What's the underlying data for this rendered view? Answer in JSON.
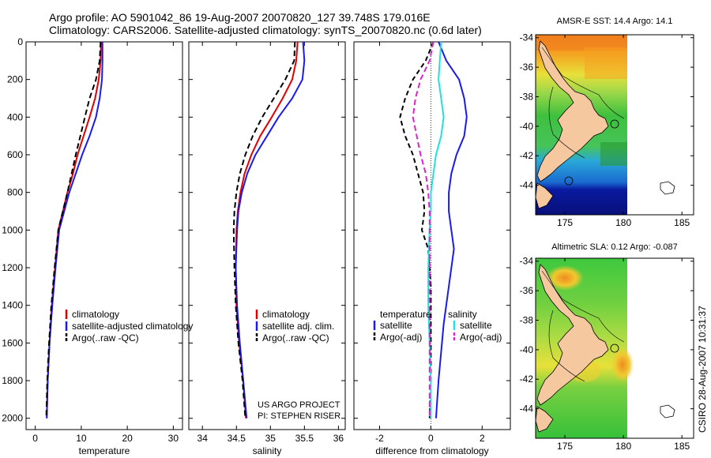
{
  "figure": {
    "title_line1": "Argo profile: AO 5901042_86 19-Aug-2007 20070820_127 39.748S 179.016E",
    "title_line2": "Climatology: CARS2006. Satellite-adjusted climatology: synTS_20070820.nc (0.6d later)",
    "footer_right": "CSIRO 28-Aug-2007 10:31:37"
  },
  "colors": {
    "red": "#e00000",
    "blue": "#1a1aee",
    "black": "#000000",
    "cyan": "#22e0e0",
    "magenta": "#dd22cc",
    "land": "#f5c8a0"
  },
  "chart_data": [
    {
      "type": "line",
      "id": "temperature",
      "xlabel": "temperature",
      "ylabel": "",
      "xlim": [
        -2,
        32
      ],
      "ylim": [
        2060,
        0
      ],
      "xticks": [
        0,
        10,
        20,
        30
      ],
      "yticks": [
        0,
        200,
        400,
        600,
        800,
        1000,
        1200,
        1400,
        1600,
        1800,
        2000
      ],
      "legend": {
        "entries": [
          "climatology",
          "satellite-adjusted climatology",
          "Argo(..raw -QC)"
        ]
      },
      "series": [
        {
          "name": "climatology",
          "color": "red",
          "dash": "",
          "x": [
            14.3,
            14.2,
            13.8,
            13.0,
            11.8,
            10.5,
            9.2,
            8.2,
            7.0,
            6.0,
            5.0,
            4.3,
            3.6,
            3.1,
            2.7,
            2.5
          ],
          "y": [
            0,
            100,
            200,
            300,
            400,
            500,
            600,
            700,
            800,
            900,
            1000,
            1200,
            1400,
            1600,
            1800,
            2000
          ]
        },
        {
          "name": "satellite-adjusted climatology",
          "color": "blue",
          "dash": "",
          "x": [
            14.6,
            14.6,
            14.5,
            14.0,
            13.2,
            11.8,
            10.2,
            8.8,
            7.4,
            6.3,
            5.2,
            4.4,
            3.7,
            3.1,
            2.7,
            2.5
          ],
          "y": [
            0,
            100,
            200,
            300,
            400,
            500,
            600,
            700,
            800,
            900,
            1000,
            1200,
            1400,
            1600,
            1800,
            2000
          ]
        },
        {
          "name": "Argo(..raw -QC)",
          "color": "black",
          "dash": "7,4",
          "x": [
            14.2,
            14.0,
            13.2,
            11.8,
            10.8,
            9.8,
            8.8,
            7.9,
            7.0,
            6.0,
            5.0,
            4.2,
            3.5,
            3.0,
            2.6,
            2.4
          ],
          "y": [
            0,
            100,
            200,
            300,
            400,
            500,
            600,
            700,
            800,
            900,
            1000,
            1200,
            1400,
            1600,
            1800,
            2000
          ]
        }
      ]
    },
    {
      "type": "line",
      "id": "salinity",
      "xlabel": "salinity",
      "ylabel": "",
      "xlim": [
        33.8,
        36.1
      ],
      "ylim": [
        2060,
        0
      ],
      "xticks": [
        34,
        34.5,
        35,
        35.5,
        36
      ],
      "legend": {
        "entries": [
          "climatology",
          "satellite adj. clim.",
          "Argo(..raw -QC)"
        ]
      },
      "annotation_line1": "US ARGO PROJECT",
      "annotation_line2": "PI: STEPHEN RISER",
      "series": [
        {
          "name": "climatology",
          "color": "red",
          "dash": "",
          "x": [
            35.4,
            35.38,
            35.32,
            35.18,
            35.02,
            34.85,
            34.72,
            34.62,
            34.56,
            34.52,
            34.5,
            34.49,
            34.5,
            34.54,
            34.6,
            34.64
          ],
          "y": [
            0,
            100,
            200,
            300,
            400,
            500,
            600,
            700,
            800,
            900,
            1000,
            1200,
            1400,
            1600,
            1800,
            2000
          ]
        },
        {
          "name": "satellite adj. clim.",
          "color": "blue",
          "dash": "",
          "x": [
            35.48,
            35.5,
            35.47,
            35.32,
            35.12,
            34.95,
            34.78,
            34.66,
            34.58,
            34.53,
            34.51,
            34.49,
            34.51,
            34.55,
            34.6,
            34.65
          ],
          "y": [
            0,
            100,
            200,
            300,
            400,
            500,
            600,
            700,
            800,
            900,
            1000,
            1200,
            1400,
            1600,
            1800,
            2000
          ]
        },
        {
          "name": "Argo(..raw -QC)",
          "color": "black",
          "dash": "7,4",
          "x": [
            35.36,
            35.35,
            35.22,
            35.05,
            34.88,
            34.74,
            34.63,
            34.55,
            34.5,
            34.47,
            34.46,
            34.47,
            34.49,
            34.53,
            34.59,
            34.63
          ],
          "y": [
            0,
            100,
            200,
            300,
            400,
            500,
            600,
            700,
            800,
            900,
            1000,
            1200,
            1400,
            1600,
            1800,
            2000
          ]
        }
      ]
    },
    {
      "type": "line",
      "id": "difference",
      "xlabel": "difference from climatology",
      "ylabel": "",
      "xlim": [
        -3,
        3.1
      ],
      "ylim": [
        2060,
        0
      ],
      "xticks": [
        -2,
        0,
        2
      ],
      "legend": {
        "header_left": "temperature",
        "header_right": "salinity",
        "entries": [
          "satellite",
          "Argo(-adj)",
          "satellite",
          "Argo(-adj)"
        ]
      },
      "series": [
        {
          "name": "temperature satellite",
          "color": "blue",
          "dash": "",
          "x": [
            0.3,
            0.6,
            1.1,
            1.3,
            1.4,
            1.3,
            1.0,
            0.8,
            0.7,
            0.7,
            0.8,
            0.9,
            0.7,
            0.5,
            0.3,
            0.2
          ],
          "y": [
            0,
            100,
            200,
            300,
            400,
            500,
            600,
            700,
            800,
            900,
            1000,
            1100,
            1300,
            1500,
            1800,
            2000
          ]
        },
        {
          "name": "temperature Argo(-adj)",
          "color": "black",
          "dash": "6,4",
          "x": [
            0.1,
            -0.2,
            -0.7,
            -1.0,
            -1.2,
            -1.0,
            -0.7,
            -0.5,
            -0.3,
            -0.25,
            -0.35,
            -0.1,
            0.0,
            0.0,
            0.0,
            -0.05
          ],
          "y": [
            0,
            100,
            200,
            300,
            400,
            500,
            600,
            700,
            800,
            900,
            1000,
            1100,
            1300,
            1500,
            1800,
            2000
          ]
        },
        {
          "name": "salinity satellite",
          "color": "cyan",
          "dash": "",
          "x": [
            0.4,
            0.35,
            0.3,
            0.4,
            0.5,
            0.4,
            0.2,
            0.1,
            0.0,
            0.0,
            -0.05,
            -0.1,
            -0.1,
            -0.05,
            0.0,
            0.0
          ],
          "y": [
            0,
            100,
            200,
            300,
            400,
            500,
            600,
            700,
            800,
            900,
            1000,
            1200,
            1400,
            1600,
            1800,
            2000
          ]
        },
        {
          "name": "salinity Argo(-adj)",
          "color": "magenta",
          "dash": "7,4",
          "x": [
            0.1,
            -0.05,
            -0.4,
            -0.6,
            -0.7,
            -0.55,
            -0.4,
            -0.2,
            -0.1,
            -0.05,
            -0.05,
            -0.05,
            -0.05,
            -0.05,
            -0.05,
            -0.05
          ],
          "y": [
            0,
            100,
            200,
            300,
            400,
            500,
            600,
            700,
            800,
            900,
            1000,
            1200,
            1400,
            1600,
            1800,
            2000
          ]
        }
      ]
    },
    {
      "type": "heatmap",
      "id": "map-sst",
      "title": "AMSR-E SST: 14.4  Argo: 14.1",
      "xlim": [
        172.5,
        186
      ],
      "ylim": [
        -46,
        -33.8
      ],
      "xticks": [
        175,
        180,
        185
      ],
      "yticks": [
        -34,
        -36,
        -38,
        -40,
        -42,
        -44
      ]
    },
    {
      "type": "heatmap",
      "id": "map-sla",
      "title": "Altimetric SLA: 0.12  Argo: -0.087",
      "xlim": [
        172.5,
        186
      ],
      "ylim": [
        -46,
        -33.8
      ],
      "xticks": [
        175,
        180,
        185
      ],
      "yticks": [
        -34,
        -36,
        -38,
        -40,
        -42,
        -44
      ]
    }
  ]
}
